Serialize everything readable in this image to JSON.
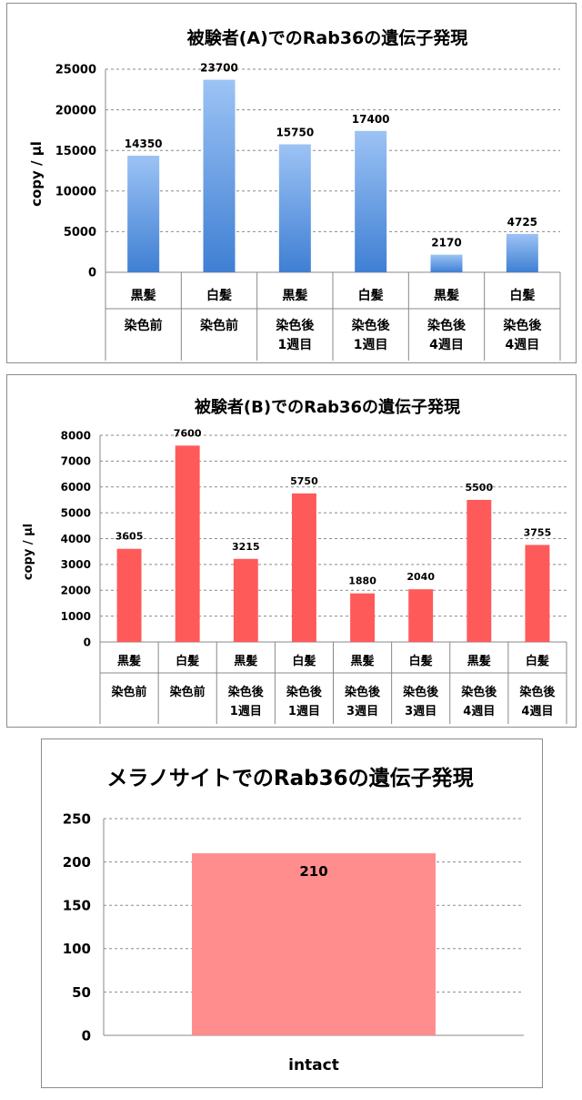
{
  "colors": {
    "chart_a_bar_top": "#9cc3f5",
    "chart_a_bar_bottom": "#3f7fd3",
    "chart_b_bar": "#ff5a5a",
    "chart_c_bar": "#ff8d8d",
    "grid": "#8a8a8a",
    "border": "#8c8c8c",
    "text": "#000000"
  },
  "chart_data": [
    {
      "type": "bar",
      "title": "被験者(A)でのRab36の遺伝子発現",
      "ylabel": "copy / μl",
      "xlabel": "",
      "ylim": [
        0,
        25000
      ],
      "yticks": [
        0,
        5000,
        10000,
        15000,
        20000,
        25000
      ],
      "grid": true,
      "legend": "none",
      "categories": [
        [
          "黒髪",
          "染色前"
        ],
        [
          "白髪",
          "染色前"
        ],
        [
          "黒髪",
          "染色後",
          "1週目"
        ],
        [
          "白髪",
          "染色後",
          "1週目"
        ],
        [
          "黒髪",
          "染色後",
          "4週目"
        ],
        [
          "白髪",
          "染色後",
          "4週目"
        ]
      ],
      "values": [
        14350,
        23700,
        15750,
        17400,
        2170,
        4725
      ]
    },
    {
      "type": "bar",
      "title": "被験者(B)でのRab36の遺伝子発現",
      "ylabel": "copy / μl",
      "xlabel": "",
      "ylim": [
        0,
        8000
      ],
      "yticks": [
        0,
        1000,
        2000,
        3000,
        4000,
        5000,
        6000,
        7000,
        8000
      ],
      "grid": true,
      "legend": "none",
      "categories": [
        [
          "黒髪",
          "染色前"
        ],
        [
          "白髪",
          "染色前"
        ],
        [
          "黒髪",
          "染色後",
          "1週目"
        ],
        [
          "白髪",
          "染色後",
          "1週目"
        ],
        [
          "黒髪",
          "染色後",
          "3週目"
        ],
        [
          "白髪",
          "染色後",
          "3週目"
        ],
        [
          "黒髪",
          "染色後",
          "4週目"
        ],
        [
          "白髪",
          "染色後",
          "4週目"
        ]
      ],
      "values": [
        3605,
        7600,
        3215,
        5750,
        1880,
        2040,
        5500,
        3755
      ]
    },
    {
      "type": "bar",
      "title": "メラノサイトでのRab36の遺伝子発現",
      "ylabel": "",
      "xlabel": "",
      "ylim": [
        0,
        250
      ],
      "yticks": [
        0,
        50,
        100,
        150,
        200,
        250
      ],
      "grid": true,
      "legend": "none",
      "categories": [
        [
          "intact"
        ]
      ],
      "values": [
        210
      ]
    }
  ]
}
